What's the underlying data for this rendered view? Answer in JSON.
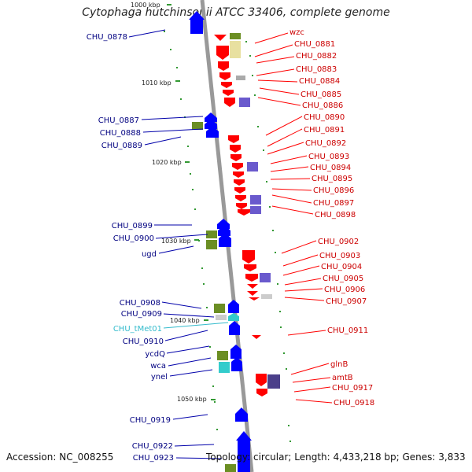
{
  "title": "Cytophaga hutchinsonii ATCC 33406, complete genome",
  "accession": "Accession: NC_008255",
  "topology": "Topology: circular; Length: 4,433,218 bp; Genes: 3,833",
  "colors": {
    "forward": "#0000ff",
    "reverse": "#ff0000",
    "trna": "#33cccc",
    "backbone": "#999999",
    "cog_green": "#6b8e23",
    "cog_yellow": "#e8e0a0",
    "cog_purple": "#6a5acd"
  },
  "ruler_labels": [
    "1000 kbp",
    "1010 kbp",
    "1020 kbp",
    "1030 kbp",
    "1040 kbp",
    "1050 kbp"
  ],
  "left_labels": [
    {
      "text": "CHU_0878",
      "color": "#000080"
    },
    {
      "text": "CHU_0887",
      "color": "#000080"
    },
    {
      "text": "CHU_0888",
      "color": "#000080"
    },
    {
      "text": "CHU_0889",
      "color": "#000080"
    },
    {
      "text": "CHU_0899",
      "color": "#000080"
    },
    {
      "text": "CHU_0900",
      "color": "#000080"
    },
    {
      "text": "ugd",
      "color": "#000080"
    },
    {
      "text": "CHU_0908",
      "color": "#000080"
    },
    {
      "text": "CHU_0909",
      "color": "#000080"
    },
    {
      "text": "CHU_tMet01",
      "color": "#33bbcc"
    },
    {
      "text": "CHU_0910",
      "color": "#000080"
    },
    {
      "text": "ycdQ",
      "color": "#000080"
    },
    {
      "text": "wca",
      "color": "#000080"
    },
    {
      "text": "ynel",
      "color": "#000080"
    },
    {
      "text": "CHU_0919",
      "color": "#000080"
    },
    {
      "text": "CHU_0922",
      "color": "#000080"
    },
    {
      "text": "CHU_0923",
      "color": "#000080"
    }
  ],
  "right_labels": [
    "wzc",
    "CHU_0881",
    "CHU_0882",
    "CHU_0883",
    "CHU_0884",
    "CHU_0885",
    "CHU_0886",
    "CHU_0890",
    "CHU_0891",
    "CHU_0892",
    "CHU_0893",
    "CHU_0894",
    "CHU_0895",
    "CHU_0896",
    "CHU_0897",
    "CHU_0898",
    "CHU_0902",
    "CHU_0903",
    "CHU_0904",
    "CHU_0905",
    "CHU_0906",
    "CHU_0907",
    "CHU_0911",
    "glnB",
    "amtB",
    "CHU_0917",
    "CHU_0918"
  ]
}
